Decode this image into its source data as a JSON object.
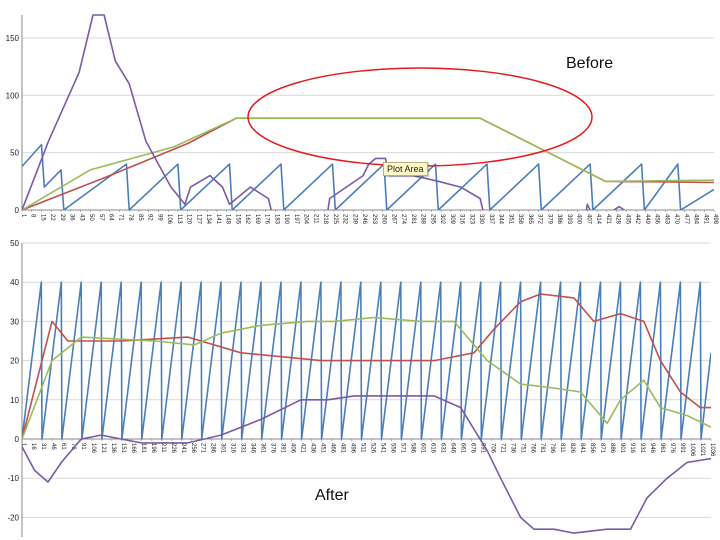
{
  "annotations": {
    "before": "Before",
    "after": "After",
    "tooltip": "Plot Area"
  },
  "colors": {
    "blue": "#4a7ebb",
    "red": "#c0504d",
    "green": "#9bbb59",
    "purple": "#7b5aa6",
    "grid": "#d9d9d9",
    "axis": "#888888",
    "ellipse": "#e31a1c"
  },
  "chart_data": [
    {
      "type": "line",
      "ylim": [
        0,
        170
      ],
      "xlim": [
        1,
        498
      ],
      "yticks": [
        "0",
        "50",
        "100",
        "150"
      ],
      "xticks": [
        "1",
        "8",
        "15",
        "22",
        "29",
        "36",
        "43",
        "50",
        "57",
        "64",
        "71",
        "78",
        "85",
        "92",
        "99",
        "106",
        "113",
        "120",
        "127",
        "134",
        "141",
        "148",
        "155",
        "162",
        "169",
        "176",
        "183",
        "190",
        "197",
        "204",
        "211",
        "218",
        "225",
        "232",
        "239",
        "246",
        "253",
        "260",
        "267",
        "274",
        "281",
        "288",
        "295",
        "302",
        "309",
        "316",
        "323",
        "330",
        "337",
        "344",
        "351",
        "358",
        "365",
        "372",
        "379",
        "386",
        "393",
        "400",
        "407",
        "414",
        "421",
        "428",
        "435",
        "442",
        "449",
        "456",
        "463",
        "470",
        "477",
        "484",
        "491",
        "498"
      ],
      "series": [
        {
          "color": "blue",
          "points": [
            [
              1,
              38
            ],
            [
              15,
              57
            ],
            [
              17,
              20
            ],
            [
              29,
              35
            ],
            [
              31,
              0
            ],
            [
              76,
              40
            ],
            [
              78,
              0
            ],
            [
              113,
              40
            ],
            [
              115,
              0
            ],
            [
              150,
              40
            ],
            [
              152,
              0
            ],
            [
              187,
              40
            ],
            [
              189,
              0
            ],
            [
              224,
              40
            ],
            [
              226,
              0
            ],
            [
              261,
              40
            ],
            [
              263,
              0
            ],
            [
              298,
              40
            ],
            [
              300,
              0
            ],
            [
              335,
              40
            ],
            [
              337,
              0
            ],
            [
              372,
              40
            ],
            [
              374,
              0
            ],
            [
              409,
              40
            ],
            [
              411,
              0
            ],
            [
              446,
              40
            ],
            [
              448,
              0
            ],
            [
              472,
              40
            ],
            [
              474,
              0
            ],
            [
              498,
              18
            ]
          ]
        },
        {
          "color": "red",
          "points": [
            [
              1,
              0
            ],
            [
              60,
              28
            ],
            [
              120,
              58
            ],
            [
              155,
              80
            ],
            [
              330,
              80
            ],
            [
              420,
              25
            ],
            [
              498,
              24
            ]
          ]
        },
        {
          "color": "green",
          "points": [
            [
              1,
              0
            ],
            [
              50,
              35
            ],
            [
              110,
              55
            ],
            [
              155,
              80
            ],
            [
              330,
              80
            ],
            [
              420,
              25
            ],
            [
              498,
              26
            ]
          ]
        },
        {
          "color": "purple",
          "points": [
            [
              1,
              0
            ],
            [
              20,
              60
            ],
            [
              42,
              120
            ],
            [
              52,
              170
            ],
            [
              60,
              170
            ],
            [
              68,
              130
            ],
            [
              78,
              110
            ],
            [
              90,
              60
            ],
            [
              108,
              20
            ],
            [
              118,
              5
            ],
            [
              122,
              20
            ],
            [
              136,
              30
            ],
            [
              145,
              20
            ],
            [
              150,
              5
            ],
            [
              165,
              20
            ],
            [
              178,
              10
            ],
            [
              186,
              -30
            ],
            [
              217,
              -30
            ],
            [
              222,
              10
            ],
            [
              246,
              30
            ],
            [
              250,
              40
            ],
            [
              255,
              45
            ],
            [
              262,
              45
            ],
            [
              265,
              30
            ],
            [
              282,
              30
            ],
            [
              300,
              25
            ],
            [
              316,
              20
            ],
            [
              330,
              10
            ],
            [
              338,
              -30
            ],
            [
              402,
              -30
            ],
            [
              407,
              5
            ],
            [
              413,
              -10
            ],
            [
              430,
              3
            ],
            [
              445,
              -10
            ],
            [
              470,
              -20
            ]
          ]
        }
      ]
    },
    {
      "type": "line",
      "ylim": [
        -25,
        50
      ],
      "xlim": [
        1,
        1036
      ],
      "yticks": [
        "-20",
        "-10",
        "0",
        "10",
        "20",
        "30",
        "40",
        "50"
      ],
      "xticks": [
        "1",
        "16",
        "31",
        "46",
        "61",
        "76",
        "91",
        "106",
        "121",
        "136",
        "151",
        "166",
        "181",
        "196",
        "211",
        "226",
        "241",
        "256",
        "271",
        "286",
        "301",
        "316",
        "331",
        "346",
        "361",
        "376",
        "391",
        "406",
        "421",
        "436",
        "451",
        "466",
        "481",
        "496",
        "511",
        "526",
        "541",
        "556",
        "571",
        "586",
        "601",
        "616",
        "631",
        "646",
        "661",
        "676",
        "691",
        "706",
        "721",
        "736",
        "751",
        "766",
        "781",
        "796",
        "811",
        "826",
        "841",
        "856",
        "871",
        "886",
        "901",
        "916",
        "931",
        "946",
        "961",
        "976",
        "991",
        "1006",
        "1021",
        "1036"
      ],
      "series": [
        {
          "color": "blue",
          "sawtooth": {
            "x0": 1,
            "period": 30,
            "peak": 40,
            "x_end": 1036,
            "end_value": 22
          }
        },
        {
          "color": "red",
          "points": [
            [
              1,
              0
            ],
            [
              46,
              30
            ],
            [
              70,
              25
            ],
            [
              150,
              25
            ],
            [
              250,
              26
            ],
            [
              330,
              22
            ],
            [
              450,
              20
            ],
            [
              530,
              20
            ],
            [
              620,
              20
            ],
            [
              680,
              22
            ],
            [
              710,
              28
            ],
            [
              750,
              35
            ],
            [
              780,
              37
            ],
            [
              830,
              36
            ],
            [
              860,
              30
            ],
            [
              900,
              32
            ],
            [
              935,
              30
            ],
            [
              960,
              20
            ],
            [
              990,
              12
            ],
            [
              1020,
              8
            ],
            [
              1036,
              8
            ]
          ]
        },
        {
          "color": "green",
          "points": [
            [
              1,
              0
            ],
            [
              46,
              20
            ],
            [
              90,
              26
            ],
            [
              200,
              25
            ],
            [
              260,
              24
            ],
            [
              300,
              27
            ],
            [
              360,
              29
            ],
            [
              430,
              30
            ],
            [
              470,
              30
            ],
            [
              530,
              31
            ],
            [
              600,
              30
            ],
            [
              650,
              30
            ],
            [
              700,
              20
            ],
            [
              750,
              14
            ],
            [
              800,
              13
            ],
            [
              840,
              12
            ],
            [
              860,
              8
            ],
            [
              880,
              4
            ],
            [
              900,
              10
            ],
            [
              935,
              15
            ],
            [
              960,
              8
            ],
            [
              1000,
              6
            ],
            [
              1036,
              3
            ]
          ]
        },
        {
          "color": "purple",
          "points": [
            [
              1,
              -2
            ],
            [
              20,
              -8
            ],
            [
              40,
              -11
            ],
            [
              60,
              -6
            ],
            [
              90,
              0
            ],
            [
              120,
              1
            ],
            [
              180,
              -1
            ],
            [
              250,
              -1
            ],
            [
              300,
              1
            ],
            [
              360,
              5
            ],
            [
              420,
              10
            ],
            [
              460,
              10
            ],
            [
              500,
              11
            ],
            [
              560,
              11
            ],
            [
              620,
              11
            ],
            [
              660,
              8
            ],
            [
              700,
              -3
            ],
            [
              720,
              -10
            ],
            [
              750,
              -20
            ],
            [
              770,
              -23
            ],
            [
              800,
              -23
            ],
            [
              830,
              -24
            ],
            [
              880,
              -23
            ],
            [
              915,
              -23
            ],
            [
              940,
              -15
            ],
            [
              970,
              -10
            ],
            [
              1000,
              -6
            ],
            [
              1036,
              -5
            ]
          ]
        }
      ]
    }
  ]
}
